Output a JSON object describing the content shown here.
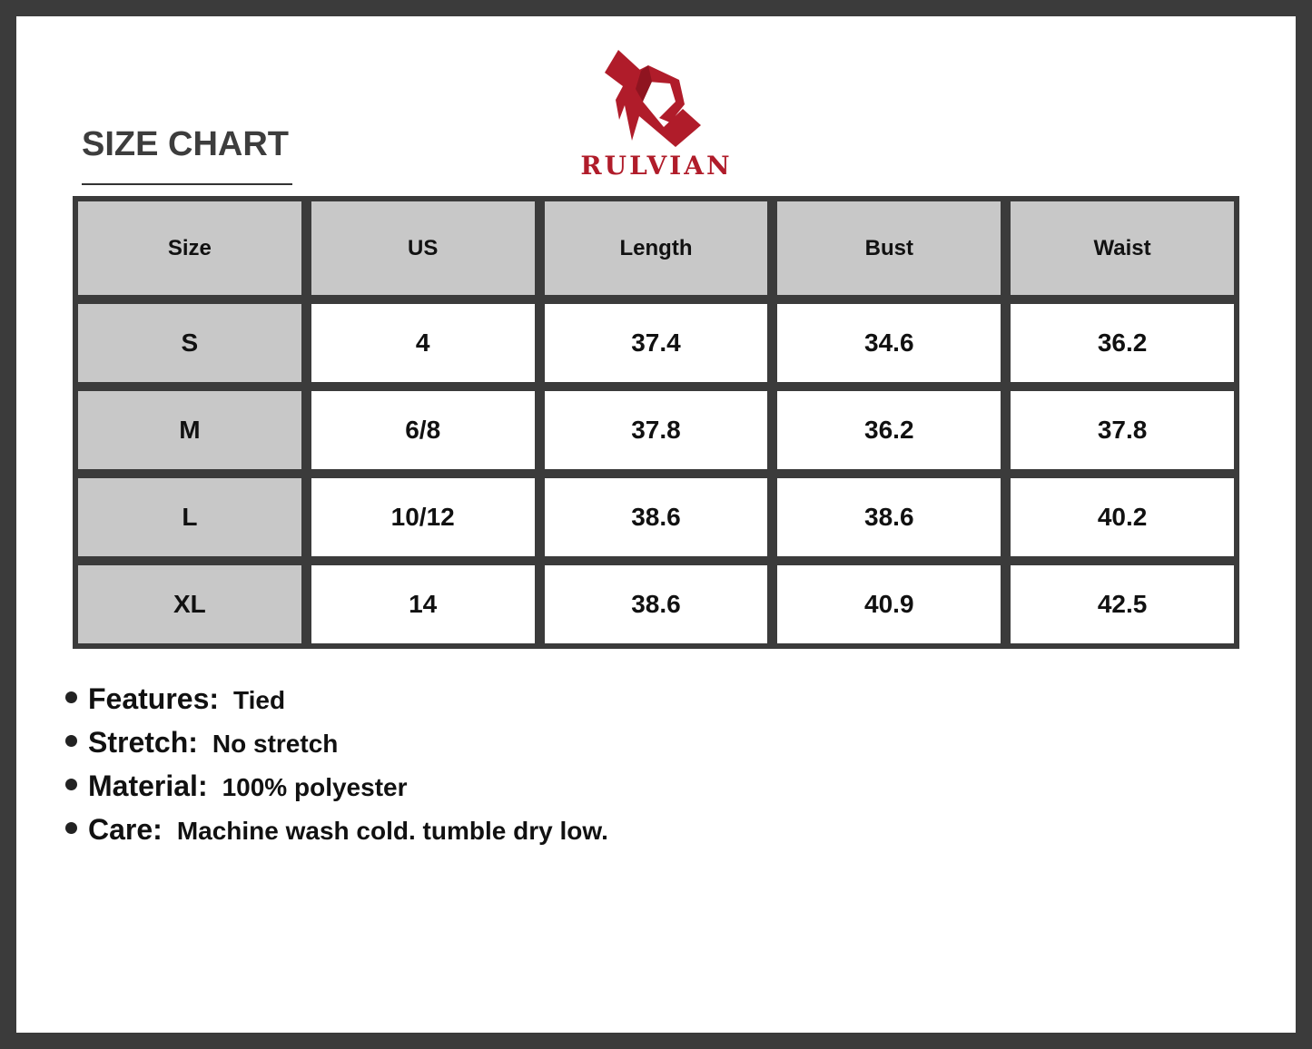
{
  "title": "SIZE CHART",
  "brand": {
    "name": "RULVIAN",
    "color": "#b01c2a",
    "icon": "rulvian-r-logo"
  },
  "table": {
    "headers": [
      "Size",
      "US",
      "Length",
      "Bust",
      "Waist"
    ],
    "rows": [
      [
        "S",
        "4",
        "37.4",
        "34.6",
        "36.2"
      ],
      [
        "M",
        "6/8",
        "37.8",
        "36.2",
        "37.8"
      ],
      [
        "L",
        "10/12",
        "38.6",
        "38.6",
        "40.2"
      ],
      [
        "XL",
        "14",
        "38.6",
        "40.9",
        "42.5"
      ]
    ]
  },
  "features": [
    {
      "label": "Features:",
      "value": "Tied"
    },
    {
      "label": "Stretch:",
      "value": "No stretch"
    },
    {
      "label": "Material:",
      "value": "100% polyester"
    },
    {
      "label": "Care:",
      "value": "Machine wash cold. tumble dry low."
    }
  ]
}
